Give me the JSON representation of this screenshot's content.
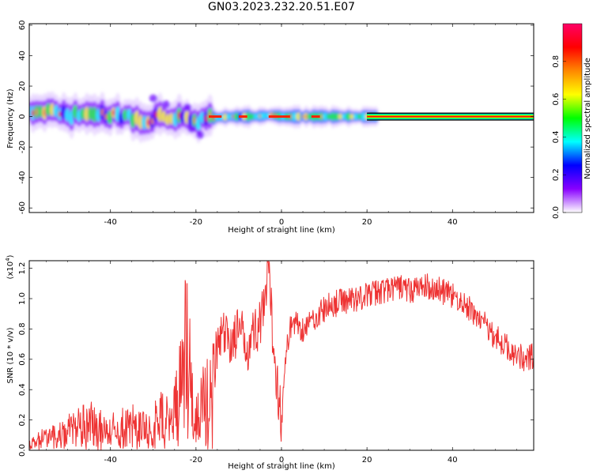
{
  "title": "GN03.2023.232.20.51.E07",
  "colors": {
    "snr_line": "#ee3333",
    "frame": "#000000"
  },
  "chart_data": [
    {
      "type": "heatmap",
      "name": "spectrogram",
      "xlabel": "Height of straight line (km)",
      "ylabel": "Frequency (Hz)",
      "xlim": [
        -59,
        59
      ],
      "ylim": [
        -63,
        61
      ],
      "xticks": [
        -40,
        -20,
        0,
        20,
        40
      ],
      "yticks": [
        -60,
        -40,
        -20,
        0,
        20,
        40,
        60
      ],
      "colorbar": {
        "label": "Normalized spectral amplitude",
        "range": [
          0,
          1
        ],
        "ticks": [
          "0.0",
          "0.2",
          "0.4",
          "0.6",
          "0.8"
        ],
        "colormap": [
          "#ffffff",
          "#8800ff",
          "#0000ff",
          "#00ffff",
          "#00ff00",
          "#ffff00",
          "#ff8800",
          "#ff0000",
          "#ff0066"
        ]
      },
      "ridge": [
        {
          "x": -59,
          "f": 2
        },
        {
          "x": -54,
          "f": 3
        },
        {
          "x": -50,
          "f": 1
        },
        {
          "x": -45,
          "f": 2
        },
        {
          "x": -40,
          "f": 1
        },
        {
          "x": -36,
          "f": 0
        },
        {
          "x": -32,
          "f": -3
        },
        {
          "x": -29,
          "f": 0
        },
        {
          "x": -26,
          "f": -2
        },
        {
          "x": -23,
          "f": -1
        },
        {
          "x": -20,
          "f": -3
        },
        {
          "x": -18,
          "f": -1
        },
        {
          "x": -16,
          "f": -1
        },
        {
          "x": -12,
          "f": 0
        },
        {
          "x": -6,
          "f": 0
        },
        {
          "x": -2,
          "f": 1
        },
        {
          "x": 0,
          "f": 0
        },
        {
          "x": 10,
          "f": 0
        },
        {
          "x": 22,
          "f": 0
        },
        {
          "x": 59,
          "f": 0
        }
      ]
    },
    {
      "type": "line",
      "name": "snr",
      "xlabel": "Height of straight line (km)",
      "ylabel": "SNR (10 * v/v)",
      "exponent_label": "(x10",
      "exponent_sup": "4",
      "exponent_close": ")",
      "xlim": [
        -59,
        59
      ],
      "ylim": [
        0,
        1.25
      ],
      "xticks": [
        -40,
        -20,
        0,
        20,
        40
      ],
      "yticks": [
        "0.0",
        "0.2",
        "0.4",
        "0.6",
        "0.8",
        "1.0",
        "1.2"
      ],
      "x": [
        -59,
        -56,
        -53,
        -50,
        -47,
        -44,
        -41,
        -38,
        -35,
        -32,
        -29,
        -27,
        -25,
        -23,
        -22,
        -21,
        -20,
        -18,
        -16,
        -14,
        -12,
        -10,
        -8,
        -6,
        -4,
        -3,
        -2,
        -1,
        0,
        1,
        2,
        3,
        5,
        8,
        11,
        14,
        17,
        20,
        23,
        26,
        28,
        30,
        33,
        36,
        39,
        42,
        45,
        48,
        51,
        54,
        57,
        59
      ],
      "values": [
        0.05,
        0.1,
        0.12,
        0.18,
        0.22,
        0.25,
        0.15,
        0.2,
        0.22,
        0.18,
        0.25,
        0.35,
        0.45,
        0.75,
        0.95,
        0.5,
        0.3,
        0.5,
        0.55,
        0.75,
        0.72,
        0.78,
        0.7,
        0.8,
        0.9,
        1.2,
        0.75,
        0.45,
        0.2,
        0.6,
        0.82,
        0.85,
        0.8,
        0.88,
        0.95,
        0.98,
        1.0,
        1.02,
        1.05,
        1.06,
        1.08,
        1.05,
        1.08,
        1.07,
        1.03,
        0.98,
        0.9,
        0.82,
        0.72,
        0.65,
        0.6,
        0.62
      ]
    }
  ]
}
